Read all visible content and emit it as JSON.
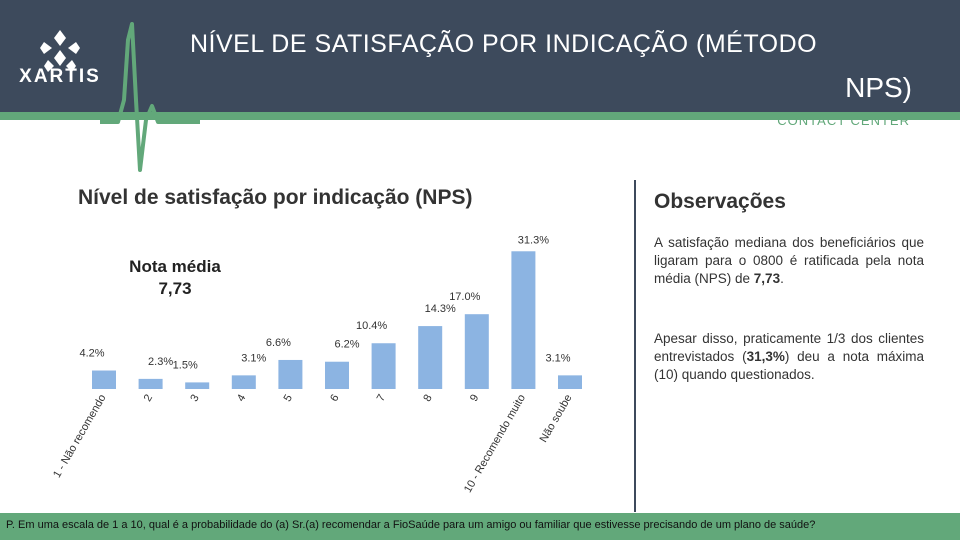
{
  "header": {
    "logo_text": "XARTIS",
    "title_line1": "NÍVEL DE SATISFAÇÃO POR INDICAÇÃO (MÉTODO",
    "title_line2": "NPS)",
    "subtitle": "CONTACT CENTER"
  },
  "chart": {
    "title": "Nível de satisfação por indicação (NPS)",
    "avg_label": "Nota média",
    "avg_value": "7,73"
  },
  "observations": {
    "title": "Observações",
    "paragraph1_text": "A satisfação mediana dos beneficiários que ligaram para o 0800 é ratificada pela nota média (NPS) de ",
    "paragraph1_bold": "7,73",
    "paragraph1_end": ".",
    "paragraph2_text": "Apesar disso, praticamente 1/3 dos clientes entrevistados (",
    "paragraph2_bold": "31,3%",
    "paragraph2_end": ") deu a nota máxima (10) quando questionados."
  },
  "footer": {
    "question": "P. Em uma escala de 1 a 10, qual é a probabilidade do (a) Sr.(a) recomendar a FioSaúde para um amigo ou familiar que estivesse precisando de um plano de saúde?"
  },
  "colors": {
    "header_bg": "#3d4a5c",
    "accent_green": "#62a87a",
    "bar": "#8cb4e2"
  },
  "chart_data": {
    "type": "bar",
    "categories": [
      "1 - Não recomendo",
      "2",
      "3",
      "4",
      "5",
      "6",
      "7",
      "8",
      "9",
      "10 - Recomendo muito",
      "Não soube"
    ],
    "values": [
      4.2,
      2.3,
      1.5,
      3.1,
      6.6,
      6.2,
      10.4,
      14.3,
      17.0,
      31.3,
      3.1
    ],
    "data_labels": [
      "4.2%",
      "2.3%",
      "1.5%",
      "3.1%",
      "6.6%",
      "6.2%",
      "10.4%",
      "14.3%",
      "17.0%",
      "31.3%",
      "3.1%"
    ],
    "unit": "%",
    "grid": false
  }
}
